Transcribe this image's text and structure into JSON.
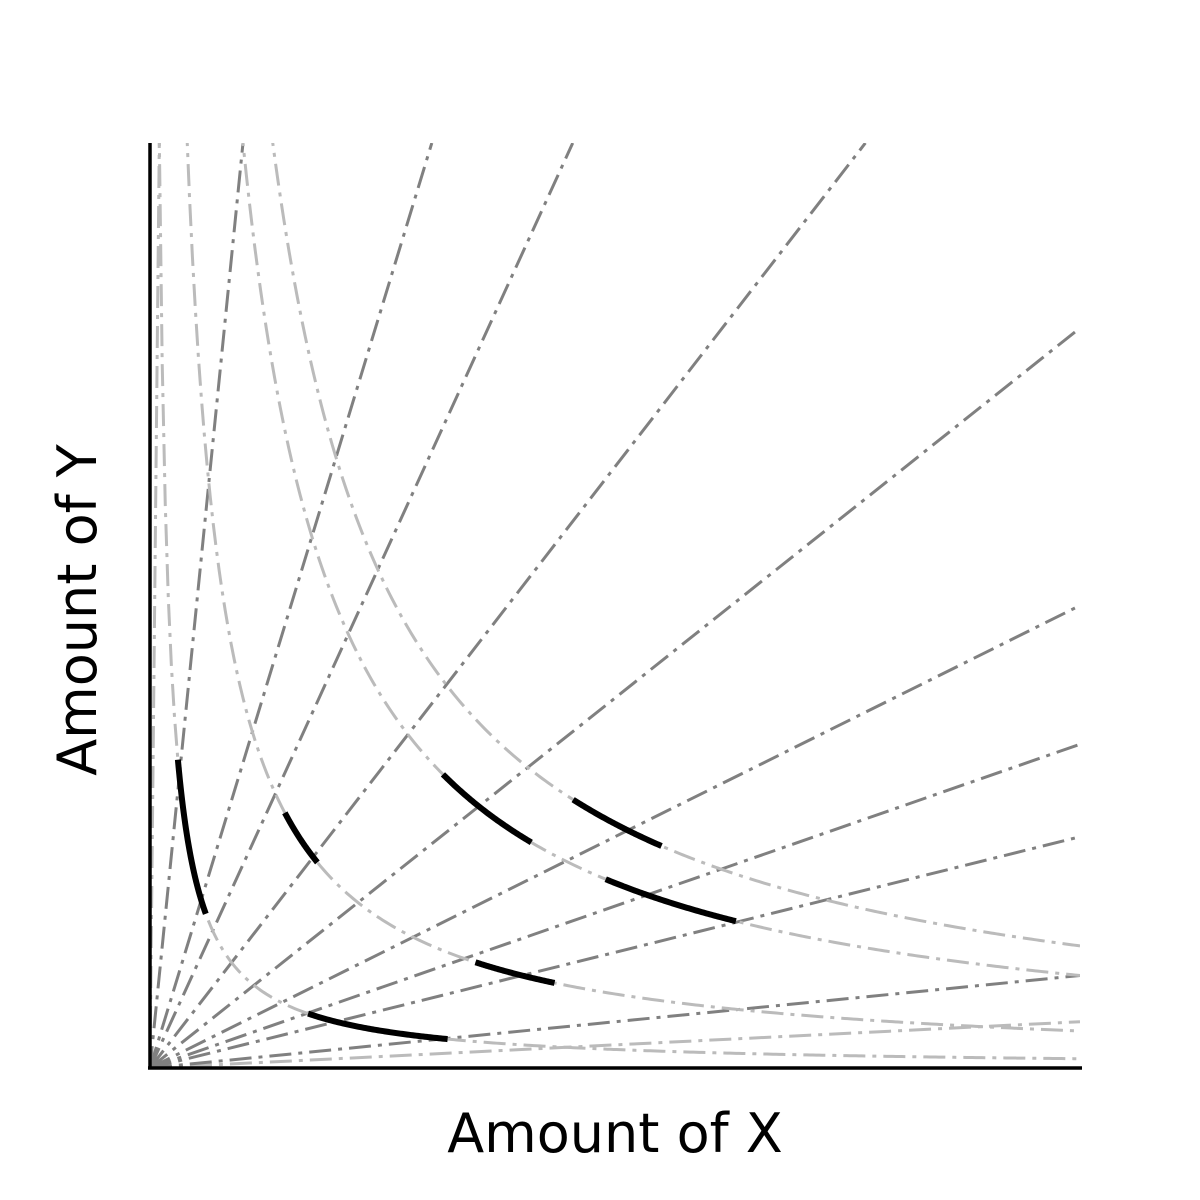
{
  "chart_data": {
    "type": "line",
    "title": "",
    "xlabel": "Amount of X",
    "ylabel": "Amount of Y",
    "xlim": [
      0,
      10
    ],
    "ylim": [
      0,
      10
    ],
    "grid": false,
    "legend": "none",
    "rays": [
      {
        "slope": 0.05,
        "style": "dashdot",
        "color": "#bbbbbb"
      },
      {
        "slope": 0.1,
        "style": "dashdot",
        "color": "#808080"
      },
      {
        "slope": 0.25,
        "style": "dashdot",
        "color": "#808080"
      },
      {
        "slope": 0.35,
        "style": "dashdot",
        "color": "#808080"
      },
      {
        "slope": 0.5,
        "style": "dashdot",
        "color": "#808080"
      },
      {
        "slope": 0.8,
        "style": "dashdot",
        "color": "#808080"
      },
      {
        "slope": 1.3,
        "style": "dashdot",
        "color": "#808080"
      },
      {
        "slope": 2.2,
        "style": "dashdot",
        "color": "#808080"
      },
      {
        "slope": 3.3,
        "style": "dashdot",
        "color": "#808080"
      },
      {
        "slope": 10,
        "style": "dashdot",
        "color": "#808080"
      },
      {
        "slope": 100,
        "style": "dashdot",
        "color": "#bbbbbb"
      }
    ],
    "isoquants": [
      {
        "k": 1.0,
        "color": "#bbbbbb"
      },
      {
        "k": 4.0,
        "color": "#bbbbbb"
      },
      {
        "k": 10.0,
        "color": "#bbbbbb"
      },
      {
        "k": 13.2,
        "color": "#bbbbbb"
      }
    ],
    "highlighted_segments": [
      {
        "k": 1.0,
        "x_range": [
          0.3,
          0.6
        ]
      },
      {
        "k": 1.0,
        "x_range": [
          1.7,
          3.2
        ]
      },
      {
        "k": 4.0,
        "x_range": [
          1.45,
          1.8
        ]
      },
      {
        "k": 4.0,
        "x_range": [
          3.5,
          4.35
        ]
      },
      {
        "k": 10.0,
        "x_range": [
          3.15,
          4.1
        ]
      },
      {
        "k": 10.0,
        "x_range": [
          4.9,
          6.3
        ]
      },
      {
        "k": 13.2,
        "x_range": [
          4.55,
          5.5
        ]
      }
    ]
  }
}
